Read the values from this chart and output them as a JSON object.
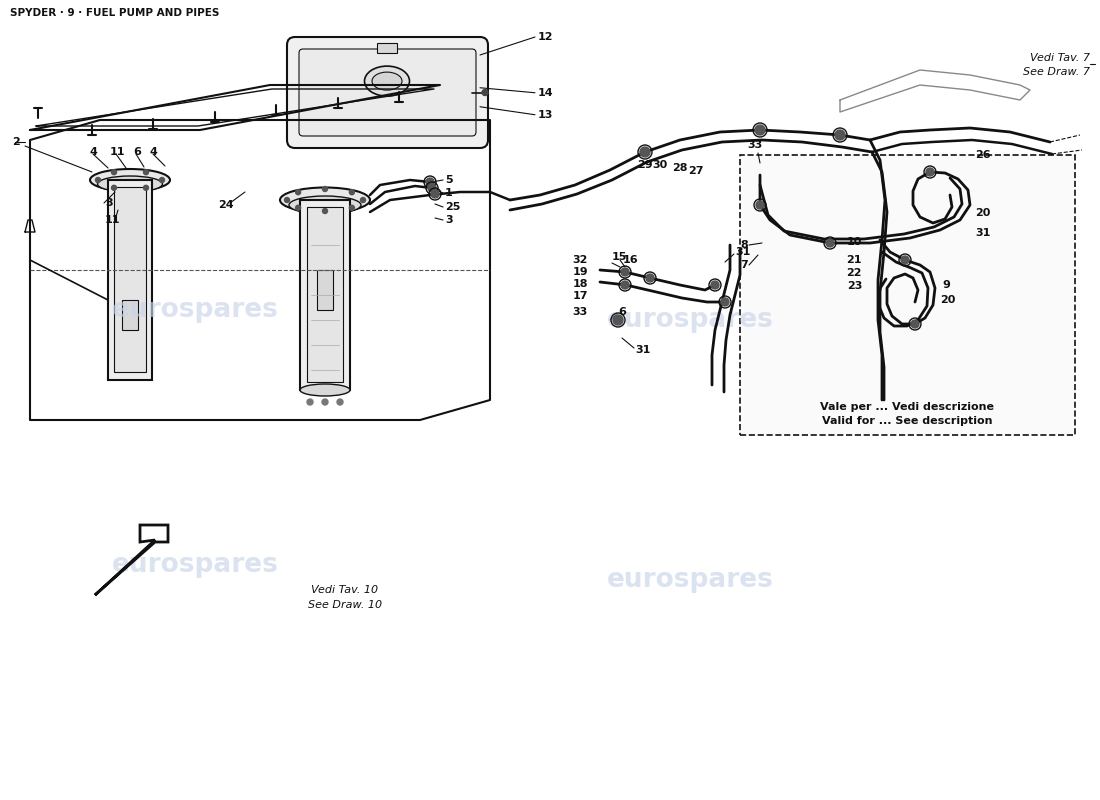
{
  "title": "SPYDER · 9 · FUEL PUMP AND PIPES",
  "bg_color": "#ffffff",
  "lc": "#111111",
  "watermark": "eurospares",
  "wc": "#c8d4e8",
  "fs_title": 7.5,
  "fs_label": 8,
  "fs_note": 8,
  "ref_top_it": "Vedi Tav. 7",
  "ref_top_en": "See Draw. 7",
  "ref_bot_it": "Vedi Tav. 10",
  "ref_bot_en": "See Draw. 10",
  "box_it": "Vale per ... Vedi descrizione",
  "box_en": "Valid for ... See description"
}
